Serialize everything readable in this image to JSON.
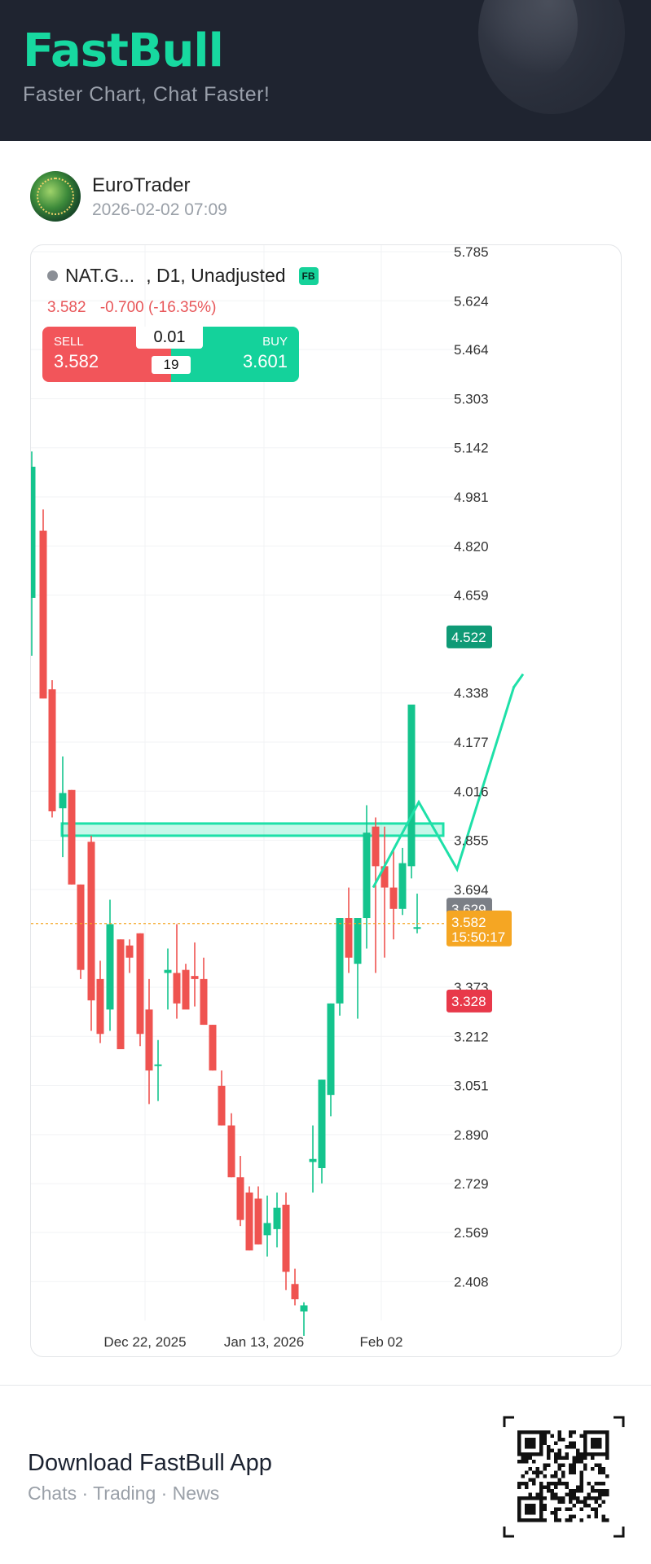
{
  "header": {
    "logo": "FastBull",
    "tagline": "Faster Chart, Chat Faster!"
  },
  "post": {
    "author": "EuroTrader",
    "timestamp": "2026-02-02 07:09",
    "avatar_icon": "globe-avatar"
  },
  "chart_header": {
    "symbol": "NAT.G...",
    "timeframe": ", D1, Unadjusted",
    "badge": "FB",
    "last": "3.582",
    "change": "-0.700 (-16.35%)",
    "change_text": "3.582  -0.700 (-16.35%)"
  },
  "trade_panel": {
    "sell_label": "SELL",
    "sell_price": "3.582",
    "buy_label": "BUY",
    "buy_price": "3.601",
    "quantity": "0.01",
    "spread": "19"
  },
  "chart_data": {
    "type": "candlestick",
    "y_ticks": [
      "5.785",
      "5.624",
      "5.464",
      "5.303",
      "5.142",
      "4.981",
      "4.820",
      "4.659",
      "4.338",
      "4.177",
      "4.016",
      "3.855",
      "3.694",
      "3.373",
      "3.212",
      "3.051",
      "2.890",
      "2.729",
      "2.569",
      "2.408"
    ],
    "x_ticks": [
      "Dec 22, 2025",
      "Jan 13, 2026",
      "Feb 02"
    ],
    "ylim": [
      2.33,
      5.8
    ],
    "price_tags": [
      {
        "value": 4.522,
        "label": "4.522",
        "color": "#0f9a76"
      },
      {
        "value": 3.629,
        "label": "3.629",
        "color": "#7b7f86"
      },
      {
        "value": 3.582,
        "label": "3.582",
        "sub": "15:50:17",
        "color": "#f5a623"
      },
      {
        "value": 3.328,
        "label": "3.328",
        "color": "#e8394a"
      }
    ],
    "current_price": 3.582,
    "colors": {
      "up": "#14c48d",
      "down": "#ef5350",
      "drawing": "#1ee0a8"
    },
    "candles": [
      {
        "o": 4.65,
        "h": 5.13,
        "l": 4.46,
        "c": 5.08
      },
      {
        "o": 4.87,
        "h": 4.94,
        "l": 4.32,
        "c": 4.32
      },
      {
        "o": 4.35,
        "h": 4.38,
        "l": 3.93,
        "c": 3.95
      },
      {
        "o": 3.96,
        "h": 4.13,
        "l": 3.8,
        "c": 4.01
      },
      {
        "o": 4.02,
        "h": 4.02,
        "l": 3.71,
        "c": 3.71
      },
      {
        "o": 3.71,
        "h": 3.71,
        "l": 3.4,
        "c": 3.43
      },
      {
        "o": 3.85,
        "h": 3.87,
        "l": 3.23,
        "c": 3.33
      },
      {
        "o": 3.4,
        "h": 3.46,
        "l": 3.19,
        "c": 3.22
      },
      {
        "o": 3.3,
        "h": 3.66,
        "l": 3.23,
        "c": 3.58
      },
      {
        "o": 3.53,
        "h": 3.53,
        "l": 3.17,
        "c": 3.17
      },
      {
        "o": 3.51,
        "h": 3.53,
        "l": 3.42,
        "c": 3.47
      },
      {
        "o": 3.55,
        "h": 3.55,
        "l": 3.18,
        "c": 3.22
      },
      {
        "o": 3.3,
        "h": 3.4,
        "l": 2.99,
        "c": 3.1
      },
      {
        "o": 3.12,
        "h": 3.2,
        "l": 3.0,
        "c": 3.12
      },
      {
        "o": 3.42,
        "h": 3.5,
        "l": 3.3,
        "c": 3.43
      },
      {
        "o": 3.42,
        "h": 3.58,
        "l": 3.27,
        "c": 3.32
      },
      {
        "o": 3.43,
        "h": 3.45,
        "l": 3.31,
        "c": 3.3
      },
      {
        "o": 3.41,
        "h": 3.52,
        "l": 3.31,
        "c": 3.4
      },
      {
        "o": 3.4,
        "h": 3.47,
        "l": 3.25,
        "c": 3.25
      },
      {
        "o": 3.25,
        "h": 3.25,
        "l": 3.1,
        "c": 3.1
      },
      {
        "o": 3.05,
        "h": 3.1,
        "l": 2.92,
        "c": 2.92
      },
      {
        "o": 2.92,
        "h": 2.96,
        "l": 2.75,
        "c": 2.75
      },
      {
        "o": 2.75,
        "h": 2.82,
        "l": 2.59,
        "c": 2.61
      },
      {
        "o": 2.7,
        "h": 2.72,
        "l": 2.51,
        "c": 2.51
      },
      {
        "o": 2.68,
        "h": 2.72,
        "l": 2.53,
        "c": 2.53
      },
      {
        "o": 2.56,
        "h": 2.69,
        "l": 2.49,
        "c": 2.6
      },
      {
        "o": 2.58,
        "h": 2.7,
        "l": 2.52,
        "c": 2.65
      },
      {
        "o": 2.66,
        "h": 2.7,
        "l": 2.38,
        "c": 2.44
      },
      {
        "o": 2.4,
        "h": 2.45,
        "l": 2.33,
        "c": 2.35
      },
      {
        "o": 2.31,
        "h": 2.34,
        "l": 2.23,
        "c": 2.33
      },
      {
        "o": 2.8,
        "h": 2.92,
        "l": 2.7,
        "c": 2.81
      },
      {
        "o": 2.78,
        "h": 3.07,
        "l": 2.73,
        "c": 3.07
      },
      {
        "o": 3.02,
        "h": 3.32,
        "l": 2.95,
        "c": 3.32
      },
      {
        "o": 3.32,
        "h": 3.6,
        "l": 3.28,
        "c": 3.6
      },
      {
        "o": 3.6,
        "h": 3.7,
        "l": 3.42,
        "c": 3.47
      },
      {
        "o": 3.45,
        "h": 3.58,
        "l": 3.27,
        "c": 3.6
      },
      {
        "o": 3.6,
        "h": 3.97,
        "l": 3.5,
        "c": 3.88
      },
      {
        "o": 3.9,
        "h": 3.93,
        "l": 3.42,
        "c": 3.77
      },
      {
        "o": 3.77,
        "h": 3.9,
        "l": 3.47,
        "c": 3.7
      },
      {
        "o": 3.7,
        "h": 3.83,
        "l": 3.53,
        "c": 3.63
      },
      {
        "o": 3.63,
        "h": 3.83,
        "l": 3.61,
        "c": 3.78
      },
      {
        "o": 3.77,
        "h": 4.3,
        "l": 3.73,
        "c": 4.3
      },
      {
        "o": 3.57,
        "h": 3.68,
        "l": 3.55,
        "c": 3.57
      }
    ],
    "candle_x": [
      38,
      52,
      63,
      76,
      87,
      98,
      111,
      122,
      134,
      147,
      158,
      171,
      182,
      193,
      205,
      216,
      227,
      238,
      249,
      260,
      271,
      283,
      294,
      305,
      316,
      327,
      339,
      350,
      361,
      372,
      383,
      394,
      405,
      416,
      427,
      438,
      449,
      460,
      471,
      482,
      493,
      504,
      511
    ],
    "zone": {
      "y_top": 3.91,
      "y_bottom": 3.87
    },
    "projection": [
      [
        3.7,
        457
      ],
      [
        3.98,
        513
      ],
      [
        3.76,
        560
      ],
      [
        4.36,
        630
      ]
    ]
  },
  "footer": {
    "title": "Download FastBull App",
    "subtitle": "Chats · Trading · News",
    "qr_icon": "qr-code-icon"
  }
}
